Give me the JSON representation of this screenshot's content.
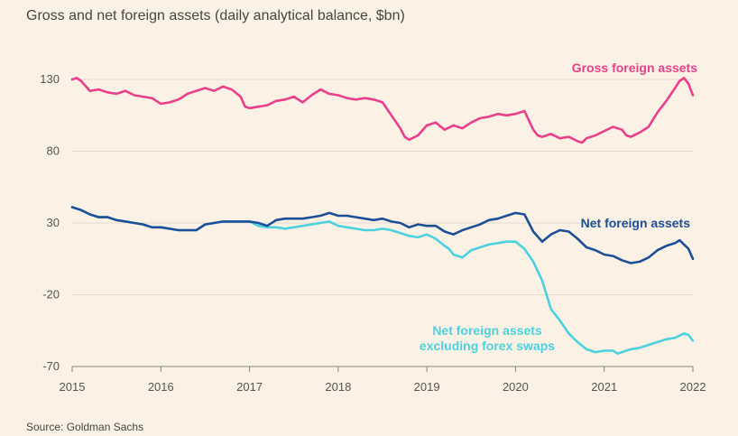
{
  "title": "Gross and net foreign assets (daily analytical balance, $bn)",
  "source": "Source: Goldman Sachs",
  "chart_data": {
    "type": "line",
    "ylim": [
      -70,
      130
    ],
    "yticks": [
      130,
      80,
      30,
      -20,
      -70
    ],
    "xlim": [
      2015,
      2022
    ],
    "xticks": [
      2015,
      2016,
      2017,
      2018,
      2019,
      2020,
      2021,
      2022
    ],
    "series": [
      {
        "name": "Gross foreign assets",
        "label_lines": [
          "Gross foreign assets"
        ],
        "color": "#ea3f8b",
        "x": [
          2015.0,
          2015.05,
          2015.1,
          2015.2,
          2015.3,
          2015.4,
          2015.5,
          2015.6,
          2015.7,
          2015.8,
          2015.9,
          2016.0,
          2016.1,
          2016.2,
          2016.3,
          2016.4,
          2016.5,
          2016.6,
          2016.7,
          2016.8,
          2016.9,
          2016.95,
          2017.0,
          2017.1,
          2017.2,
          2017.3,
          2017.4,
          2017.5,
          2017.6,
          2017.7,
          2017.8,
          2017.9,
          2018.0,
          2018.1,
          2018.2,
          2018.3,
          2018.4,
          2018.5,
          2018.6,
          2018.7,
          2018.75,
          2018.8,
          2018.9,
          2019.0,
          2019.1,
          2019.2,
          2019.3,
          2019.4,
          2019.5,
          2019.6,
          2019.7,
          2019.8,
          2019.9,
          2020.0,
          2020.1,
          2020.2,
          2020.25,
          2020.3,
          2020.4,
          2020.5,
          2020.6,
          2020.7,
          2020.75,
          2020.8,
          2020.9,
          2021.0,
          2021.1,
          2021.2,
          2021.25,
          2021.3,
          2021.4,
          2021.5,
          2021.6,
          2021.7,
          2021.8,
          2021.85,
          2021.9,
          2021.95,
          2022.0
        ],
        "values": [
          130,
          131,
          129,
          122,
          123,
          121,
          120,
          122,
          119,
          118,
          117,
          113,
          114,
          116,
          120,
          122,
          124,
          122,
          125,
          123,
          118,
          111,
          110,
          111,
          112,
          115,
          116,
          118,
          114,
          119,
          123,
          120,
          119,
          117,
          116,
          117,
          116,
          114,
          105,
          96,
          90,
          88,
          91,
          98,
          100,
          95,
          98,
          96,
          100,
          103,
          104,
          106,
          105,
          106,
          108,
          95,
          91,
          90,
          92,
          89,
          90,
          87,
          86,
          89,
          91,
          94,
          97,
          95,
          91,
          90,
          93,
          97,
          107,
          115,
          124,
          129,
          131,
          127,
          119
        ]
      },
      {
        "name": "Net foreign assets",
        "label_lines": [
          "Net foreign assets"
        ],
        "color": "#1d4f96",
        "x": [
          2015.0,
          2015.1,
          2015.2,
          2015.3,
          2015.4,
          2015.5,
          2015.6,
          2015.7,
          2015.8,
          2015.9,
          2016.0,
          2016.1,
          2016.2,
          2016.3,
          2016.4,
          2016.5,
          2016.6,
          2016.7,
          2016.8,
          2016.9,
          2017.0,
          2017.1,
          2017.2,
          2017.3,
          2017.4,
          2017.5,
          2017.6,
          2017.7,
          2017.8,
          2017.9,
          2018.0,
          2018.1,
          2018.2,
          2018.3,
          2018.4,
          2018.5,
          2018.6,
          2018.7,
          2018.8,
          2018.9,
          2019.0,
          2019.1,
          2019.2,
          2019.3,
          2019.4,
          2019.5,
          2019.6,
          2019.7,
          2019.8,
          2019.9,
          2020.0,
          2020.1,
          2020.2,
          2020.3,
          2020.4,
          2020.5,
          2020.6,
          2020.7,
          2020.8,
          2020.9,
          2021.0,
          2021.1,
          2021.2,
          2021.3,
          2021.4,
          2021.5,
          2021.6,
          2021.7,
          2021.8,
          2021.85,
          2021.9,
          2021.95,
          2022.0
        ],
        "values": [
          41,
          39,
          36,
          34,
          34,
          32,
          31,
          30,
          29,
          27,
          27,
          26,
          25,
          25,
          25,
          29,
          30,
          31,
          31,
          31,
          31,
          30,
          28,
          32,
          33,
          33,
          33,
          34,
          35,
          37,
          35,
          35,
          34,
          33,
          32,
          33,
          31,
          30,
          27,
          29,
          28,
          28,
          24,
          22,
          25,
          27,
          29,
          32,
          33,
          35,
          37,
          36,
          24,
          17,
          22,
          25,
          24,
          19,
          13,
          11,
          8,
          7,
          4,
          2,
          3,
          6,
          11,
          14,
          16,
          18,
          15,
          12,
          5
        ]
      },
      {
        "name": "Net foreign assets excluding forex swaps",
        "label_lines": [
          "Net foreign assets",
          "excluding forex swaps"
        ],
        "color": "#4cd1df",
        "x": [
          2015.0,
          2015.1,
          2015.2,
          2015.3,
          2015.4,
          2015.5,
          2015.6,
          2015.7,
          2015.8,
          2015.9,
          2016.0,
          2016.1,
          2016.2,
          2016.3,
          2016.4,
          2016.5,
          2016.6,
          2016.7,
          2016.8,
          2016.9,
          2017.0,
          2017.1,
          2017.2,
          2017.3,
          2017.4,
          2017.5,
          2017.6,
          2017.7,
          2017.8,
          2017.9,
          2018.0,
          2018.1,
          2018.2,
          2018.3,
          2018.4,
          2018.5,
          2018.6,
          2018.7,
          2018.8,
          2018.9,
          2019.0,
          2019.1,
          2019.2,
          2019.25,
          2019.3,
          2019.4,
          2019.5,
          2019.6,
          2019.7,
          2019.8,
          2019.9,
          2020.0,
          2020.1,
          2020.2,
          2020.3,
          2020.4,
          2020.5,
          2020.6,
          2020.7,
          2020.8,
          2020.9,
          2021.0,
          2021.1,
          2021.15,
          2021.2,
          2021.3,
          2021.4,
          2021.5,
          2021.6,
          2021.7,
          2021.8,
          2021.9,
          2021.95,
          2022.0
        ],
        "values": [
          41,
          39,
          36,
          34,
          34,
          32,
          31,
          30,
          29,
          27,
          27,
          26,
          25,
          25,
          25,
          29,
          30,
          31,
          31,
          31,
          31,
          28,
          27,
          27,
          26,
          27,
          28,
          29,
          30,
          31,
          28,
          27,
          26,
          25,
          25,
          26,
          25,
          23,
          21,
          20,
          22,
          19,
          14,
          12,
          8,
          6,
          11,
          13,
          15,
          16,
          17,
          17,
          12,
          3,
          -10,
          -30,
          -38,
          -47,
          -53,
          -58,
          -60,
          -59,
          -59,
          -61,
          -60,
          -58,
          -57,
          -55,
          -53,
          -51,
          -50,
          -47,
          -48,
          -52
        ]
      }
    ]
  }
}
